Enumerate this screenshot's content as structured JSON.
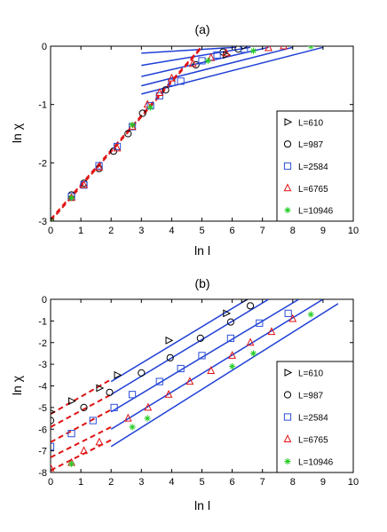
{
  "colors": {
    "fit_line": "#1f3fd6",
    "dashed_fit": "#e01414",
    "L610": "#000000",
    "L987": "#000000",
    "L2584": "#2a4fd8",
    "L6765": "#e01414",
    "L10946": "#22cc22"
  },
  "chart_data": [
    {
      "type": "scatter",
      "title": "(a)",
      "xlabel": "ln l",
      "ylabel": "ln χ",
      "xlim": [
        0,
        10
      ],
      "ylim": [
        -3,
        0
      ],
      "xticks": [
        0,
        1,
        2,
        3,
        4,
        5,
        6,
        7,
        8,
        9,
        10
      ],
      "yticks": [
        0,
        -1,
        -2,
        -3
      ],
      "legend": "lower-right",
      "series": [
        {
          "name": "L=610",
          "marker": "triangle-right",
          "color": "#000000",
          "x": [
            5.8,
            6.4
          ],
          "y": [
            -0.15,
            0.0
          ]
        },
        {
          "name": "L=987",
          "marker": "circle",
          "color": "#000000",
          "x": [
            0.0,
            0.69,
            1.1,
            1.6,
            2.08,
            2.56,
            3.04,
            3.8,
            4.8,
            5.7,
            6.2
          ],
          "y": [
            -3.0,
            -2.55,
            -2.35,
            -2.1,
            -1.8,
            -1.5,
            -1.15,
            -0.75,
            -0.32,
            -0.1,
            -0.05
          ]
        },
        {
          "name": "L=2584",
          "marker": "square",
          "color": "#2a4fd8",
          "x": [
            0.69,
            1.1,
            1.6,
            2.2,
            2.7,
            3.3,
            3.6,
            4.0,
            4.3,
            5.0,
            5.5,
            6.4
          ],
          "y": [
            -2.58,
            -2.38,
            -2.05,
            -1.72,
            -1.38,
            -1.02,
            -0.85,
            -0.62,
            -0.6,
            -0.25,
            -0.15,
            -0.05
          ]
        },
        {
          "name": "L=6765",
          "marker": "triangle-up",
          "color": "#e01414",
          "x": [
            0.69,
            1.1,
            1.6,
            2.2,
            2.7,
            3.2,
            3.6,
            4.0,
            4.7,
            5.3,
            5.8,
            7.2,
            7.7
          ],
          "y": [
            -2.6,
            -2.38,
            -2.08,
            -1.75,
            -1.38,
            -1.0,
            -0.8,
            -0.55,
            -0.3,
            -0.2,
            -0.12,
            -0.03,
            0.0
          ]
        },
        {
          "name": "L=10946",
          "marker": "star",
          "color": "#22cc22",
          "x": [
            0.0,
            0.69,
            2.7,
            3.3,
            5.2,
            6.7,
            8.6
          ],
          "y": [
            -3.0,
            -2.6,
            -1.35,
            -1.05,
            -0.25,
            -0.08,
            0.0
          ]
        }
      ],
      "fit_lines": [
        {
          "x": [
            3.0,
            6.1
          ],
          "y": [
            -0.12,
            -0.02
          ]
        },
        {
          "x": [
            3.0,
            6.6
          ],
          "y": [
            -0.33,
            -0.02
          ]
        },
        {
          "x": [
            3.0,
            7.2
          ],
          "y": [
            -0.52,
            -0.02
          ]
        },
        {
          "x": [
            3.0,
            8.0
          ],
          "y": [
            -0.68,
            -0.02
          ]
        },
        {
          "x": [
            3.0,
            9.0
          ],
          "y": [
            -0.82,
            -0.02
          ]
        }
      ],
      "dashed_lines": [
        {
          "x": [
            0.0,
            5.0
          ],
          "y": [
            -3.0,
            -0.02
          ]
        },
        {
          "x": [
            0.0,
            5.0
          ],
          "y": [
            -2.97,
            0.0
          ]
        }
      ]
    },
    {
      "type": "scatter",
      "title": "(b)",
      "xlabel": "ln l",
      "ylabel": "ln χ",
      "xlim": [
        0,
        10
      ],
      "ylim": [
        -8,
        0
      ],
      "xticks": [
        0,
        1,
        2,
        3,
        4,
        5,
        6,
        7,
        8,
        9,
        10
      ],
      "yticks": [
        0,
        -1,
        -2,
        -3,
        -4,
        -5,
        -6,
        -7,
        -8
      ],
      "legend": "lower-right",
      "series": [
        {
          "name": "L=610",
          "marker": "triangle-right",
          "color": "#000000",
          "x": [
            0.0,
            0.69,
            1.61,
            2.2,
            3.9,
            5.8,
            6.4
          ],
          "y": [
            -5.2,
            -4.7,
            -4.1,
            -3.5,
            -1.9,
            -0.65,
            0.0
          ]
        },
        {
          "name": "L=987",
          "marker": "circle",
          "color": "#000000",
          "x": [
            0.0,
            1.1,
            1.95,
            3.0,
            3.95,
            4.95,
            5.95,
            6.6
          ],
          "y": [
            -5.6,
            -5.0,
            -4.3,
            -3.4,
            -2.7,
            -1.8,
            -1.05,
            -0.3
          ]
        },
        {
          "name": "L=2584",
          "marker": "square",
          "color": "#2a4fd8",
          "x": [
            0.0,
            0.69,
            1.4,
            2.1,
            2.7,
            3.6,
            4.3,
            5.0,
            5.95,
            6.9,
            7.85
          ],
          "y": [
            -6.8,
            -6.2,
            -5.6,
            -5.0,
            -4.4,
            -3.8,
            -3.2,
            -2.6,
            -1.8,
            -1.1,
            -0.65
          ]
        },
        {
          "name": "L=6765",
          "marker": "triangle-up",
          "color": "#e01414",
          "x": [
            0.0,
            0.69,
            1.1,
            1.61,
            2.56,
            3.22,
            3.9,
            4.6,
            5.3,
            6.0,
            6.6,
            7.3,
            8.0
          ],
          "y": [
            -7.8,
            -7.55,
            -7.0,
            -6.6,
            -5.5,
            -5.0,
            -4.4,
            -3.8,
            -3.3,
            -2.6,
            -2.0,
            -1.5,
            -0.9
          ]
        },
        {
          "name": "L=10946",
          "marker": "star",
          "color": "#22cc22",
          "x": [
            0.69,
            2.7,
            3.2,
            6.0,
            6.7,
            8.6
          ],
          "y": [
            -7.6,
            -5.9,
            -5.5,
            -3.1,
            -2.5,
            -0.7
          ]
        }
      ],
      "fit_lines": [
        {
          "x": [
            2.0,
            6.5
          ],
          "y": [
            -3.8,
            0.0
          ]
        },
        {
          "x": [
            2.0,
            7.2
          ],
          "y": [
            -4.4,
            0.0
          ]
        },
        {
          "x": [
            2.0,
            8.2
          ],
          "y": [
            -5.2,
            0.0
          ]
        },
        {
          "x": [
            2.0,
            9.0
          ],
          "y": [
            -6.0,
            0.0
          ]
        },
        {
          "x": [
            2.0,
            9.5
          ],
          "y": [
            -6.8,
            -0.2
          ]
        }
      ],
      "dashed_lines": [
        {
          "x": [
            0.0,
            2.0
          ],
          "y": [
            -5.3,
            -3.7
          ]
        },
        {
          "x": [
            0.0,
            2.0
          ],
          "y": [
            -5.9,
            -4.4
          ]
        },
        {
          "x": [
            0.0,
            2.0
          ],
          "y": [
            -6.6,
            -5.1
          ]
        },
        {
          "x": [
            0.0,
            2.0
          ],
          "y": [
            -7.3,
            -5.9
          ]
        },
        {
          "x": [
            0.0,
            2.0
          ],
          "y": [
            -7.9,
            -6.5
          ]
        }
      ]
    }
  ]
}
